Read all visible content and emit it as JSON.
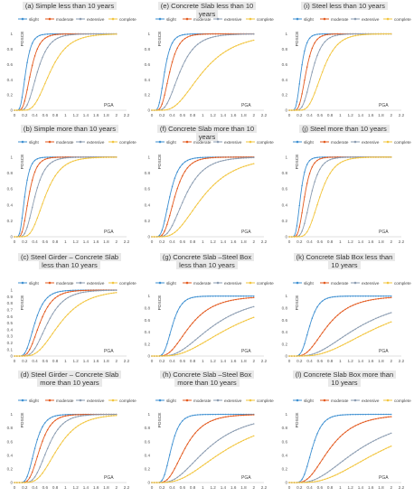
{
  "legend_labels": [
    "slight",
    "moderate",
    "extensive",
    "complete"
  ],
  "colors": {
    "slight": "#3d8fd1",
    "moderate": "#e3591e",
    "extensive": "#8a9bb0",
    "complete": "#f2c53d"
  },
  "chart_data": [
    {
      "id": "a",
      "type": "line",
      "title": "(a) Simple less than 10 years",
      "ylabel": "POSCE",
      "xlabel": "PGA",
      "xlim": [
        0,
        2.2
      ],
      "ylim": [
        0,
        1.1
      ],
      "xticks": [
        "0",
        "0.2",
        "0.4",
        "0.6",
        "0.8",
        "1",
        "1.2",
        "1.4",
        "1.6",
        "1.8",
        "2",
        "2.2"
      ],
      "yticks": [
        "0",
        "0.2",
        "0.4",
        "0.6",
        "0.8",
        "1"
      ],
      "median": [
        0.22,
        0.32,
        0.45,
        0.7
      ],
      "beta": [
        0.4,
        0.4,
        0.4,
        0.4
      ]
    },
    {
      "id": "e",
      "type": "line",
      "title": "(e) Concrete Slab less than 10 years",
      "ylabel": "POSCE",
      "xlabel": "PGA",
      "xlim": [
        0,
        2.2
      ],
      "ylim": [
        0,
        1.1
      ],
      "xticks": [
        "0",
        "0.2",
        "0.4",
        "0.6",
        "0.8",
        "1",
        "1.2",
        "1.4",
        "1.6",
        "1.8",
        "2",
        "2.2"
      ],
      "yticks": [
        "0",
        "0.2",
        "0.4",
        "0.6",
        "0.8",
        "1"
      ],
      "median": [
        0.25,
        0.35,
        0.55,
        1.0
      ],
      "beta": [
        0.4,
        0.4,
        0.45,
        0.5
      ]
    },
    {
      "id": "i",
      "type": "line",
      "title": "(i) Steel less than 10 years",
      "ylabel": "POSCE",
      "xlabel": "PGA",
      "xlim": [
        0,
        2.2
      ],
      "ylim": [
        0,
        1.1
      ],
      "xticks": [
        "0",
        "0.2",
        "0.4",
        "0.6",
        "0.8",
        "1",
        "1.2",
        "1.4",
        "1.6",
        "1.8",
        "2",
        "2.2"
      ],
      "yticks": [
        "0",
        "0.2",
        "0.4",
        "0.6",
        "0.8",
        "1"
      ],
      "median": [
        0.23,
        0.33,
        0.45,
        0.65
      ],
      "beta": [
        0.35,
        0.35,
        0.35,
        0.35
      ]
    },
    {
      "id": "b",
      "type": "line",
      "title": "(b) Simple more than 10 years",
      "ylabel": "POSCE",
      "xlabel": "PGA",
      "xlim": [
        0,
        2.2
      ],
      "ylim": [
        0,
        1.1
      ],
      "xticks": [
        "0",
        "0.2",
        "0.4",
        "0.6",
        "0.8",
        "1",
        "1.2",
        "1.4",
        "1.6",
        "1.8",
        "2",
        "2.2"
      ],
      "yticks": [
        "0",
        "0.2",
        "0.4",
        "0.6",
        "0.8",
        "1"
      ],
      "median": [
        0.2,
        0.28,
        0.4,
        0.6
      ],
      "beta": [
        0.4,
        0.4,
        0.4,
        0.4
      ]
    },
    {
      "id": "f",
      "type": "line",
      "title": "(f) Concrete Slab more than 10 years",
      "ylabel": "POSCE",
      "xlabel": "PGA",
      "xlim": [
        0,
        2.2
      ],
      "ylim": [
        0,
        1.1
      ],
      "xticks": [
        "0",
        "0.2",
        "0.4",
        "0.6",
        "0.8",
        "1",
        "1.2",
        "1.4",
        "1.6",
        "1.8",
        "2",
        "2.2"
      ],
      "yticks": [
        "0",
        "0.2",
        "0.4",
        "0.6",
        "0.8",
        "1"
      ],
      "median": [
        0.35,
        0.45,
        0.65,
        1.0
      ],
      "beta": [
        0.4,
        0.4,
        0.45,
        0.5
      ]
    },
    {
      "id": "j",
      "type": "line",
      "title": "(j) Steel more than 10 years",
      "ylabel": "POSCE",
      "xlabel": "PGA",
      "xlim": [
        0,
        2.2
      ],
      "ylim": [
        0,
        1.1
      ],
      "xticks": [
        "0",
        "0.2",
        "0.4",
        "0.6",
        "0.8",
        "1",
        "1.2",
        "1.4",
        "1.6",
        "1.8",
        "2",
        "2.2"
      ],
      "yticks": [
        "0",
        "0.2",
        "0.4",
        "0.6",
        "0.8",
        "1"
      ],
      "median": [
        0.22,
        0.3,
        0.42,
        0.6
      ],
      "beta": [
        0.35,
        0.35,
        0.35,
        0.35
      ]
    },
    {
      "id": "c",
      "type": "line",
      "title": "(c) Steel Girder – Concrete Slab less than 10 years",
      "ylabel": "POSCE",
      "xlabel": "PGA",
      "xlim": [
        0,
        2.2
      ],
      "ylim": [
        0,
        1.0
      ],
      "xticks": [
        "0",
        "0.2",
        "0.4",
        "0.6",
        "0.8",
        "1",
        "1.2",
        "1.4",
        "1.6",
        "1.8",
        "2",
        "2.2"
      ],
      "yticks": [
        "0",
        "0.1",
        "0.2",
        "0.3",
        "0.4",
        "0.5",
        "0.6",
        "0.7",
        "0.8",
        "0.9",
        "1"
      ],
      "median": [
        0.4,
        0.5,
        0.65,
        0.9
      ],
      "beta": [
        0.4,
        0.4,
        0.4,
        0.45
      ]
    },
    {
      "id": "g",
      "type": "line",
      "title": "(g) Concrete Slab –Steel Box less than 10 years",
      "ylabel": "POSCE",
      "xlabel": "PGA",
      "xlim": [
        0,
        2.2
      ],
      "ylim": [
        0,
        1.1
      ],
      "xticks": [
        "0",
        "0.2",
        "0.4",
        "0.6",
        "0.8",
        "1",
        "1.2",
        "1.4",
        "1.6",
        "1.8",
        "2",
        "2.2"
      ],
      "yticks": [
        "0",
        "0.2",
        "0.4",
        "0.6",
        "0.8",
        "1"
      ],
      "median": [
        0.4,
        0.75,
        1.2,
        1.6
      ],
      "beta": [
        0.35,
        0.5,
        0.55,
        0.6
      ]
    },
    {
      "id": "k",
      "type": "line",
      "title": "(k) Concrete Slab Box less than 10 years",
      "ylabel": "POSCE",
      "xlabel": "PGA",
      "xlim": [
        0,
        2.2
      ],
      "ylim": [
        0,
        1.1
      ],
      "xticks": [
        "0",
        "0.2",
        "0.4",
        "0.6",
        "0.8",
        "1",
        "1.2",
        "1.4",
        "1.6",
        "1.8",
        "2",
        "2.2"
      ],
      "yticks": [
        "0",
        "0.2",
        "0.4",
        "0.6",
        "0.8",
        "1"
      ],
      "median": [
        0.4,
        0.75,
        1.4,
        1.8
      ],
      "beta": [
        0.35,
        0.5,
        0.6,
        0.6
      ]
    },
    {
      "id": "d",
      "type": "line",
      "title": "(d) Steel Girder – Concrete Slab more than 10 years",
      "ylabel": "POSCE",
      "xlabel": "PGA",
      "xlim": [
        0,
        2.2
      ],
      "ylim": [
        0,
        1.1
      ],
      "xticks": [
        "0",
        "0.2",
        "0.4",
        "0.6",
        "0.8",
        "1",
        "1.2",
        "1.4",
        "1.6",
        "1.8",
        "2",
        "2.2"
      ],
      "yticks": [
        "0",
        "0.2",
        "0.4",
        "0.6",
        "0.8",
        "1"
      ],
      "median": [
        0.4,
        0.5,
        0.65,
        0.85
      ],
      "beta": [
        0.35,
        0.35,
        0.35,
        0.4
      ]
    },
    {
      "id": "h",
      "type": "line",
      "title": "(h) Concrete Slab –Steel Box more than 10 years",
      "ylabel": "POSCE",
      "xlabel": "PGA",
      "xlim": [
        0,
        2.2
      ],
      "ylim": [
        0,
        1.1
      ],
      "xticks": [
        "0",
        "0.2",
        "0.4",
        "0.6",
        "0.8",
        "1",
        "1.2",
        "1.4",
        "1.6",
        "1.8",
        "2",
        "2.2"
      ],
      "yticks": [
        "0",
        "0.2",
        "0.4",
        "0.6",
        "0.8",
        "1"
      ],
      "median": [
        0.38,
        0.65,
        1.1,
        1.5
      ],
      "beta": [
        0.35,
        0.45,
        0.55,
        0.6
      ]
    },
    {
      "id": "l",
      "type": "line",
      "title": "(l) Concrete Slab Box more than 10 years",
      "ylabel": "POSCE",
      "xlabel": "PGA",
      "xlim": [
        0,
        2.2
      ],
      "ylim": [
        0,
        1.1
      ],
      "xticks": [
        "0",
        "0.2",
        "0.4",
        "0.6",
        "0.8",
        "1",
        "1.2",
        "1.4",
        "1.6",
        "1.8",
        "2",
        "2.2"
      ],
      "yticks": [
        "0",
        "0.2",
        "0.4",
        "0.6",
        "0.8",
        "1"
      ],
      "median": [
        0.45,
        0.8,
        1.4,
        1.9
      ],
      "beta": [
        0.35,
        0.5,
        0.6,
        0.6
      ]
    }
  ]
}
